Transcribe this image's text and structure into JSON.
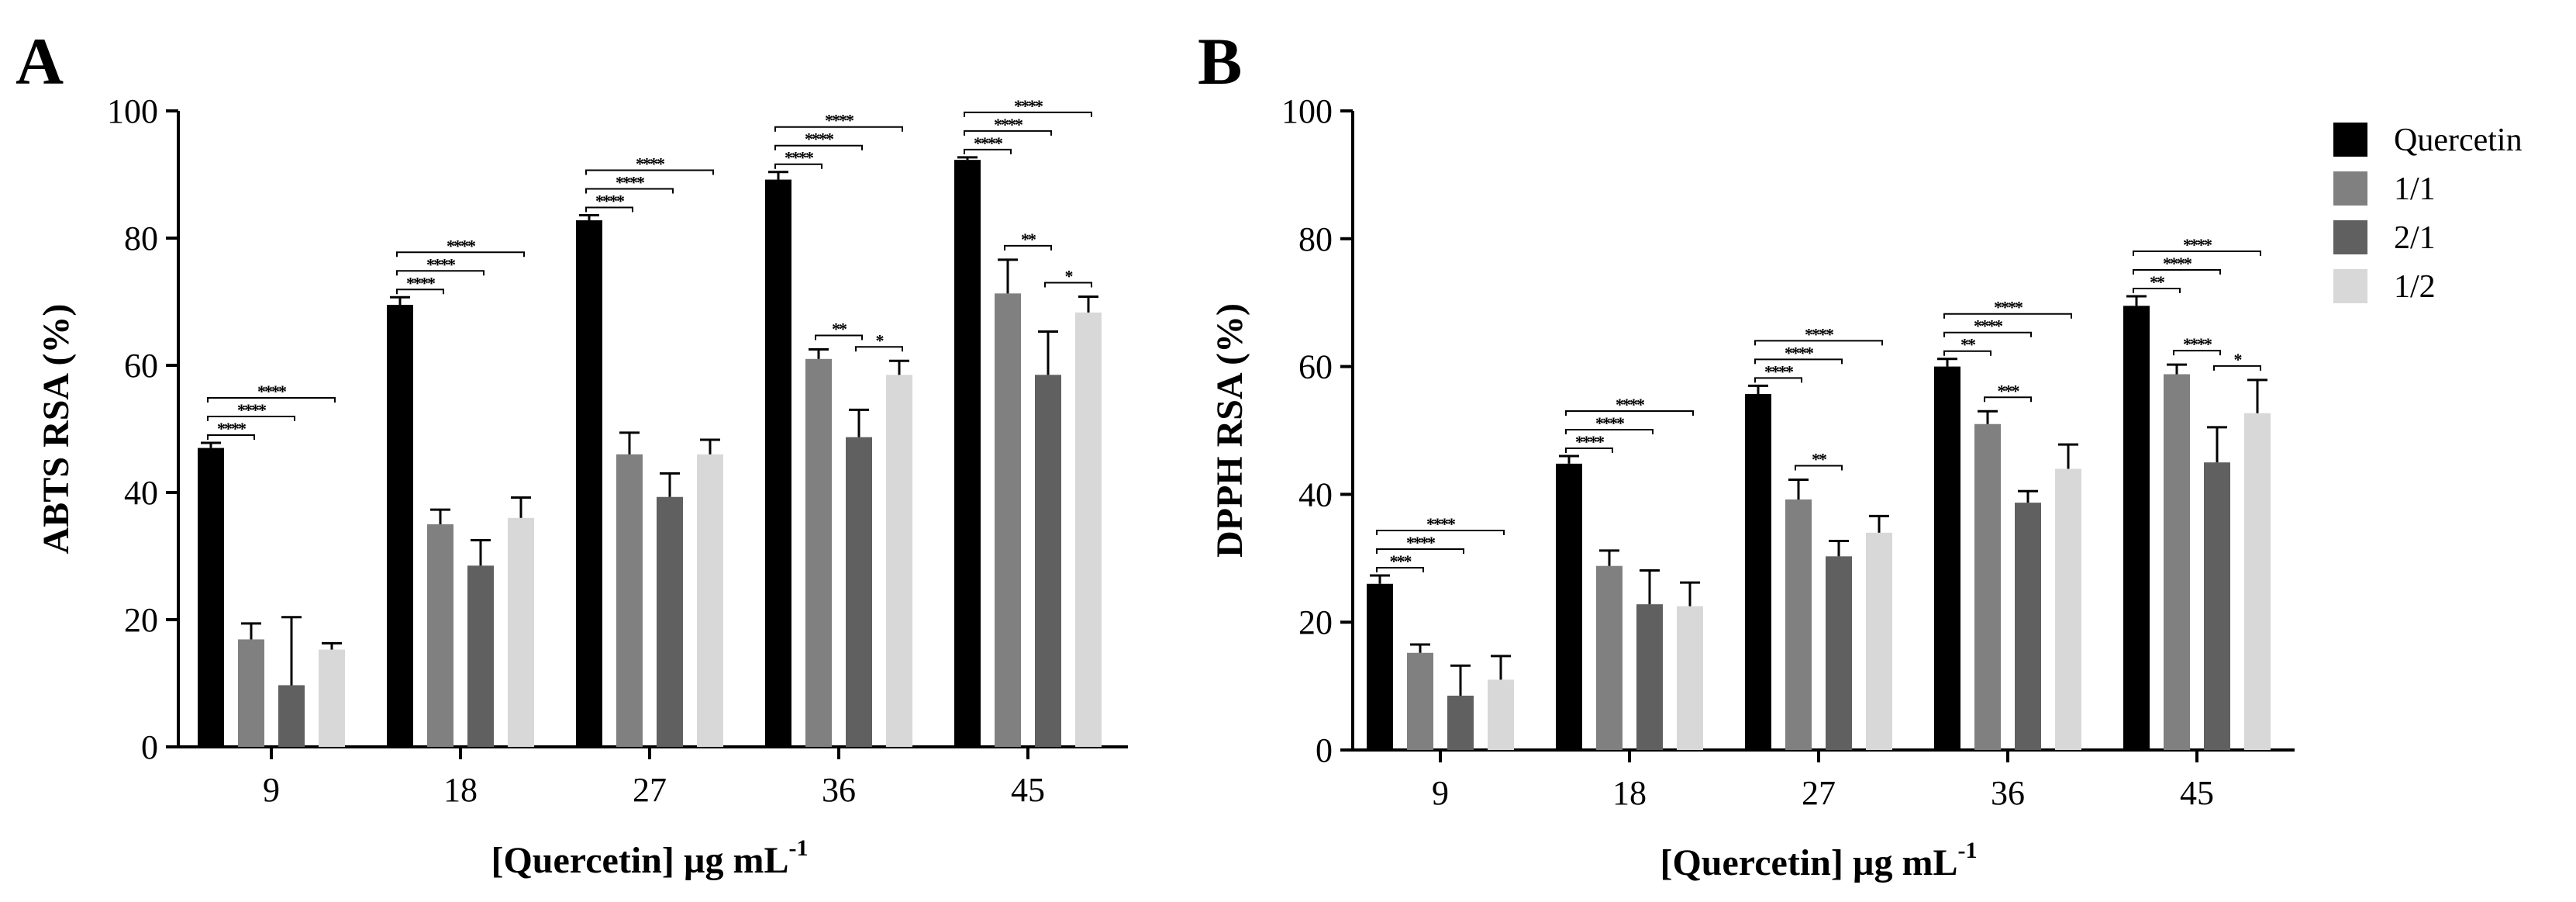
{
  "chart_data": [
    {
      "panel": "A",
      "type": "bar",
      "xlabel": "[Quercetin] µg mL",
      "xlabel_sup": "-1",
      "ylabel": "ABTS RSA (%)",
      "ylim": [
        0,
        100
      ],
      "yticks": [
        0,
        20,
        40,
        60,
        80,
        100
      ],
      "categories": [
        "9",
        "18",
        "27",
        "36",
        "45"
      ],
      "series": [
        {
          "name": "Quercetin",
          "color": "#000000",
          "values": [
            47,
            69.5,
            82.8,
            89.2,
            92.3
          ],
          "errors": [
            0.8,
            1.2,
            0.8,
            1.2,
            0.4
          ]
        },
        {
          "name": "1/1",
          "color": "#808080",
          "values": [
            16.9,
            35,
            46,
            61,
            71.3
          ],
          "errors": [
            2.5,
            2.3,
            3.4,
            1.5,
            5.3
          ]
        },
        {
          "name": "2/1",
          "color": "#606060",
          "values": [
            9.7,
            28.5,
            39.3,
            48.7,
            58.5
          ],
          "errors": [
            10.7,
            4,
            3.7,
            4.3,
            6.8
          ]
        },
        {
          "name": "1/2",
          "color": "#d8d8d8",
          "values": [
            15.3,
            36,
            46,
            58.5,
            68.3
          ],
          "errors": [
            1,
            3.2,
            2.3,
            2.2,
            2.5
          ]
        }
      ],
      "significance": [
        {
          "group": 0,
          "from": 0,
          "to": 1,
          "label": "****"
        },
        {
          "group": 0,
          "from": 0,
          "to": 2,
          "label": "****"
        },
        {
          "group": 0,
          "from": 0,
          "to": 3,
          "label": "****"
        },
        {
          "group": 1,
          "from": 0,
          "to": 1,
          "label": "****"
        },
        {
          "group": 1,
          "from": 0,
          "to": 2,
          "label": "****"
        },
        {
          "group": 1,
          "from": 0,
          "to": 3,
          "label": "****"
        },
        {
          "group": 2,
          "from": 0,
          "to": 1,
          "label": "****"
        },
        {
          "group": 2,
          "from": 0,
          "to": 2,
          "label": "****"
        },
        {
          "group": 2,
          "from": 0,
          "to": 3,
          "label": "****"
        },
        {
          "group": 3,
          "from": 0,
          "to": 1,
          "label": "****"
        },
        {
          "group": 3,
          "from": 0,
          "to": 2,
          "label": "****"
        },
        {
          "group": 3,
          "from": 0,
          "to": 3,
          "label": "****"
        },
        {
          "group": 3,
          "from": 1,
          "to": 2,
          "label": "**"
        },
        {
          "group": 3,
          "from": 2,
          "to": 3,
          "label": "*"
        },
        {
          "group": 4,
          "from": 0,
          "to": 1,
          "label": "****"
        },
        {
          "group": 4,
          "from": 0,
          "to": 2,
          "label": "****"
        },
        {
          "group": 4,
          "from": 0,
          "to": 3,
          "label": "****"
        },
        {
          "group": 4,
          "from": 1,
          "to": 2,
          "label": "**"
        },
        {
          "group": 4,
          "from": 2,
          "to": 3,
          "label": "*"
        }
      ]
    },
    {
      "panel": "B",
      "type": "bar",
      "xlabel": "[Quercetin] µg mL",
      "xlabel_sup": "-1",
      "ylabel": "DPPH RSA (%)",
      "ylim": [
        0,
        100
      ],
      "yticks": [
        0,
        20,
        40,
        60,
        80,
        100
      ],
      "categories": [
        "9",
        "18",
        "27",
        "36",
        "45"
      ],
      "series": [
        {
          "name": "Quercetin",
          "color": "#000000",
          "values": [
            26,
            44.8,
            55.7,
            60,
            69.5
          ],
          "errors": [
            1.3,
            1.2,
            1.3,
            1.2,
            1.5
          ]
        },
        {
          "name": "1/1",
          "color": "#808080",
          "values": [
            15.2,
            28.8,
            39.2,
            51,
            58.8
          ],
          "errors": [
            1.3,
            2.4,
            3.1,
            2,
            1.5
          ]
        },
        {
          "name": "2/1",
          "color": "#606060",
          "values": [
            8.5,
            22.8,
            30.3,
            38.7,
            45
          ],
          "errors": [
            4.7,
            5.3,
            2.4,
            1.8,
            5.5
          ]
        },
        {
          "name": "1/2",
          "color": "#d8d8d8",
          "values": [
            11,
            22.5,
            34,
            44,
            52.7
          ],
          "errors": [
            3.7,
            3.7,
            2.6,
            3.8,
            5.2
          ]
        }
      ],
      "significance": [
        {
          "group": 0,
          "from": 0,
          "to": 1,
          "label": "***"
        },
        {
          "group": 0,
          "from": 0,
          "to": 2,
          "label": "****"
        },
        {
          "group": 0,
          "from": 0,
          "to": 3,
          "label": "****"
        },
        {
          "group": 1,
          "from": 0,
          "to": 1,
          "label": "****"
        },
        {
          "group": 1,
          "from": 0,
          "to": 2,
          "label": "****"
        },
        {
          "group": 1,
          "from": 0,
          "to": 3,
          "label": "****"
        },
        {
          "group": 2,
          "from": 0,
          "to": 1,
          "label": "****"
        },
        {
          "group": 2,
          "from": 0,
          "to": 2,
          "label": "****"
        },
        {
          "group": 2,
          "from": 0,
          "to": 3,
          "label": "****"
        },
        {
          "group": 2,
          "from": 1,
          "to": 2,
          "label": "**"
        },
        {
          "group": 3,
          "from": 0,
          "to": 1,
          "label": "**"
        },
        {
          "group": 3,
          "from": 0,
          "to": 2,
          "label": "****"
        },
        {
          "group": 3,
          "from": 0,
          "to": 3,
          "label": "****"
        },
        {
          "group": 3,
          "from": 1,
          "to": 2,
          "label": "***"
        },
        {
          "group": 4,
          "from": 0,
          "to": 1,
          "label": "**"
        },
        {
          "group": 4,
          "from": 0,
          "to": 2,
          "label": "****"
        },
        {
          "group": 4,
          "from": 0,
          "to": 3,
          "label": "****"
        },
        {
          "group": 4,
          "from": 1,
          "to": 2,
          "label": "****"
        },
        {
          "group": 4,
          "from": 2,
          "to": 3,
          "label": "*"
        }
      ]
    }
  ],
  "legend": {
    "placement": "top-right",
    "items": [
      {
        "name": "Quercetin",
        "color": "#000000"
      },
      {
        "name": "1/1",
        "color": "#808080"
      },
      {
        "name": "2/1",
        "color": "#606060"
      },
      {
        "name": "1/2",
        "color": "#d8d8d8"
      }
    ]
  }
}
